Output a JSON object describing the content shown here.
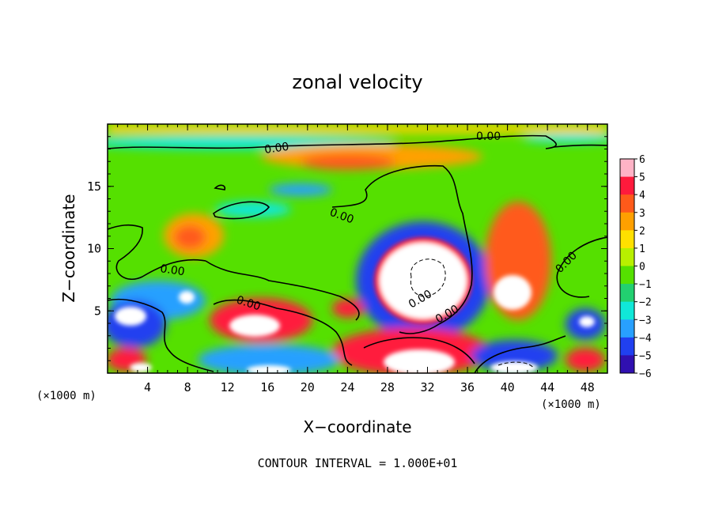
{
  "chart_data": {
    "type": "heatmap",
    "title": "zonal velocity",
    "xlabel": "X−coordinate",
    "ylabel": "Z−coordinate",
    "x_unit": "(×1000 m)",
    "z_unit": "(×1000 m)",
    "xlim": [
      0,
      50
    ],
    "ylim": [
      0,
      20
    ],
    "x_ticks": [
      "4",
      "8",
      "12",
      "16",
      "20",
      "24",
      "28",
      "32",
      "36",
      "40",
      "44",
      "48"
    ],
    "x_tick_values": [
      4,
      8,
      12,
      16,
      20,
      24,
      28,
      32,
      36,
      40,
      44,
      48
    ],
    "y_ticks": [
      "5",
      "10",
      "15"
    ],
    "y_tick_values": [
      5,
      10,
      15
    ],
    "colorbar": {
      "levels": [
        "6",
        "5",
        "4",
        "3",
        "2",
        "1",
        "0",
        "−1",
        "−2",
        "−3",
        "−4",
        "−5",
        "−6"
      ],
      "colors": [
        "#ffb3c6",
        "#ff1a3c",
        "#ff5a1a",
        "#ffa000",
        "#ffe000",
        "#b8f000",
        "#55e000",
        "#22d070",
        "#10e8d8",
        "#28a0ff",
        "#2040f0",
        "#3010b0",
        "#7a2a90"
      ]
    },
    "contour_interval": "CONTOUR INTERVAL = 1.000E+01",
    "contour_labels": [
      "0.00",
      "0.00",
      "0.00",
      "0.00",
      "0.00",
      "0.00",
      "0.00",
      "0.00"
    ],
    "color_map": {
      "positive_peak": "#ffffff",
      "strong_positive": "#ff1a3c",
      "moderate_positive": "#ffa000",
      "weak_positive": "#b8f000",
      "zero": "#55e000",
      "weak_negative": "#10e8d8",
      "moderate_negative": "#28a0ff",
      "strong_negative": "#2040f0",
      "negative_peak": "#ffffff"
    }
  }
}
